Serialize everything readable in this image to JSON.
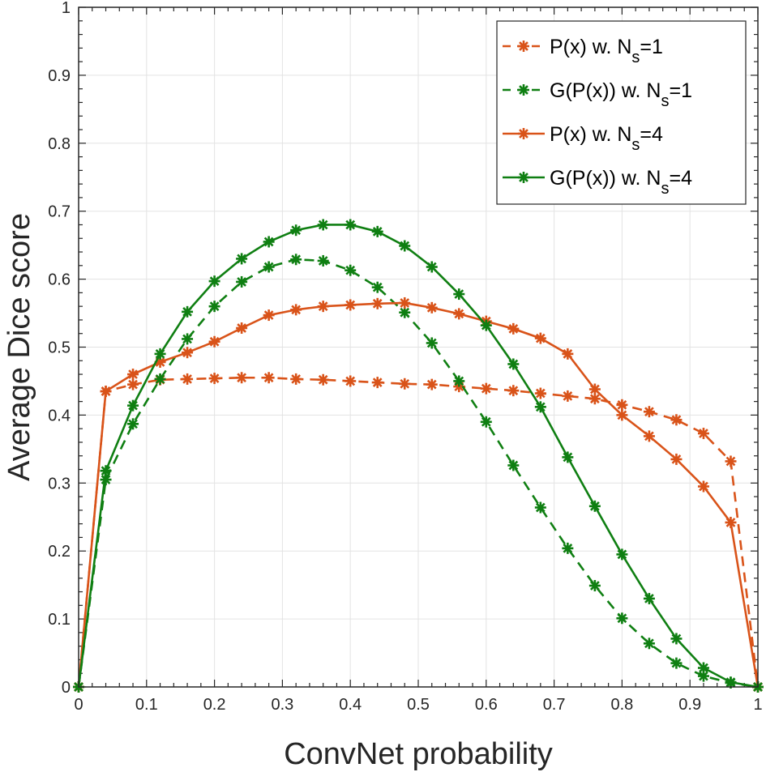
{
  "chart_data": {
    "type": "line",
    "title": "",
    "xlabel": "ConvNet probability",
    "ylabel": "Average Dice score",
    "xlim": [
      0,
      1
    ],
    "ylim": [
      0,
      1
    ],
    "xticks": [
      "0",
      "0.1",
      "0.2",
      "0.3",
      "0.4",
      "0.5",
      "0.6",
      "0.7",
      "0.8",
      "0.9",
      "1"
    ],
    "yticks": [
      "0",
      "0.1",
      "0.2",
      "0.3",
      "0.4",
      "0.5",
      "0.6",
      "0.7",
      "0.8",
      "0.9",
      "1"
    ],
    "grid": true,
    "legend_position": "top-right",
    "x": [
      0,
      0.04,
      0.08,
      0.12,
      0.16,
      0.2,
      0.24,
      0.28,
      0.32,
      0.36,
      0.4,
      0.44,
      0.48,
      0.52,
      0.56,
      0.6,
      0.64,
      0.68,
      0.72,
      0.76,
      0.8,
      0.84,
      0.88,
      0.92,
      0.96,
      1
    ],
    "series": [
      {
        "name": "P(x) w. Ns=1",
        "label_main": "P(x) w. N",
        "label_sub": "s",
        "label_end": "=1",
        "color": "#d95319",
        "style": "dashed",
        "marker": "asterisk",
        "values": [
          0,
          0.435,
          0.445,
          0.452,
          0.453,
          0.454,
          0.455,
          0.455,
          0.453,
          0.452,
          0.45,
          0.448,
          0.446,
          0.445,
          0.442,
          0.439,
          0.436,
          0.432,
          0.428,
          0.424,
          0.415,
          0.405,
          0.393,
          0.373,
          0.332,
          0
        ]
      },
      {
        "name": "G(P(x)) w. Ns=1",
        "label_main": "G(P(x)) w. N",
        "label_sub": "s",
        "label_end": "=1",
        "color": "#0f7f12",
        "style": "dashed",
        "marker": "asterisk",
        "values": [
          0,
          0.305,
          0.387,
          0.453,
          0.512,
          0.56,
          0.596,
          0.618,
          0.629,
          0.627,
          0.613,
          0.588,
          0.551,
          0.506,
          0.45,
          0.39,
          0.326,
          0.264,
          0.204,
          0.149,
          0.101,
          0.064,
          0.035,
          0.016,
          0.006,
          0
        ]
      },
      {
        "name": "P(x) w. Ns=4",
        "label_main": "P(x) w. N",
        "label_sub": "s",
        "label_end": "=4",
        "color": "#d95319",
        "style": "solid",
        "marker": "asterisk",
        "values": [
          0,
          0.435,
          0.46,
          0.478,
          0.492,
          0.508,
          0.528,
          0.547,
          0.555,
          0.56,
          0.562,
          0.564,
          0.565,
          0.558,
          0.549,
          0.538,
          0.527,
          0.513,
          0.49,
          0.438,
          0.4,
          0.369,
          0.335,
          0.295,
          0.242,
          0
        ]
      },
      {
        "name": "G(P(x)) w. Ns=4",
        "label_main": "G(P(x)) w. N",
        "label_sub": "s",
        "label_end": "=4",
        "color": "#0f7f12",
        "style": "solid",
        "marker": "asterisk",
        "values": [
          0,
          0.318,
          0.414,
          0.49,
          0.552,
          0.597,
          0.63,
          0.655,
          0.672,
          0.68,
          0.68,
          0.67,
          0.649,
          0.618,
          0.578,
          0.532,
          0.475,
          0.412,
          0.338,
          0.266,
          0.195,
          0.13,
          0.071,
          0.028,
          0.007,
          0
        ]
      }
    ]
  }
}
